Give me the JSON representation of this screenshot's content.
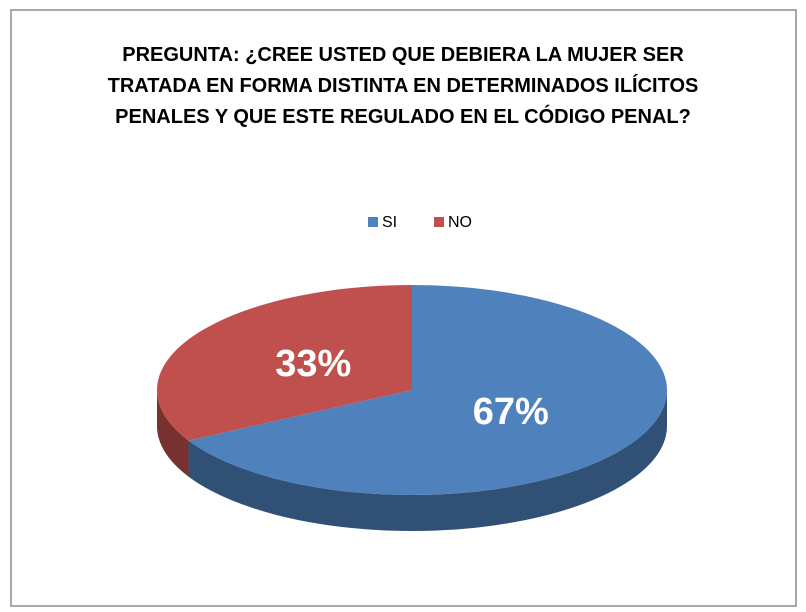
{
  "chart_data": {
    "type": "pie",
    "title": "PREGUNTA: ¿CREE USTED QUE DEBIERA LA MUJER SER TRATADA EN FORMA DISTINTA EN DETERMINADOS ILÍCITOS PENALES Y QUE ESTE REGULADO EN EL CÓDIGO PENAL?",
    "categories": [
      "SI",
      "NO"
    ],
    "values": [
      67,
      33
    ],
    "value_labels": [
      "67%",
      "33%"
    ],
    "colors": [
      "#4f81bd",
      "#c0504d"
    ],
    "legend": "top"
  }
}
